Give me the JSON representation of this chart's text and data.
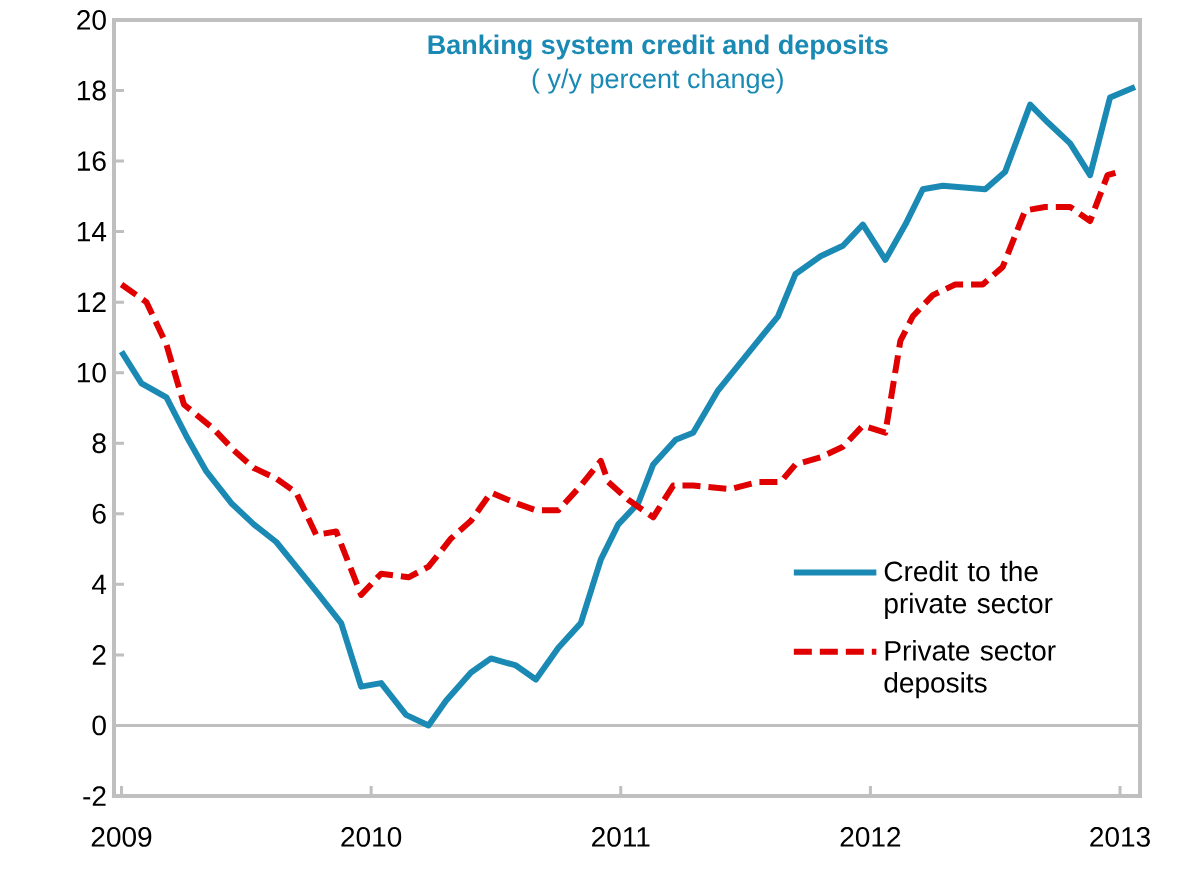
{
  "chart_data": {
    "type": "line",
    "title": "Banking system credit and deposits",
    "subtitle": "( y/y percent change)",
    "xlim": [
      2008.97,
      2013.08
    ],
    "xticks": [
      2009,
      2010,
      2011,
      2012,
      2013
    ],
    "ylim": [
      -2,
      20
    ],
    "yticks": [
      -2,
      0,
      2,
      4,
      6,
      8,
      10,
      12,
      14,
      16,
      18,
      20
    ],
    "legend": "bottom right",
    "grid": false,
    "marker": "none",
    "ref_lines": [
      {
        "axis": "y",
        "value": 0,
        "color": "#bfbfbf"
      }
    ],
    "series": [
      {
        "name": "Credit to the private sector",
        "color": "#1a8ab4",
        "line_style": "solid",
        "x": [
          2009.0,
          2009.08,
          2009.18,
          2009.26,
          2009.34,
          2009.44,
          2009.53,
          2009.62,
          2009.7,
          2009.78,
          2009.88,
          2009.96,
          2010.04,
          2010.14,
          2010.23,
          2010.3,
          2010.4,
          2010.48,
          2010.58,
          2010.66,
          2010.75,
          2010.84,
          2010.92,
          2010.99,
          2011.07,
          2011.13,
          2011.22,
          2011.29,
          2011.39,
          2011.55,
          2011.63,
          2011.7,
          2011.8,
          2011.89,
          2011.97,
          2012.06,
          2012.14,
          2012.21,
          2012.29,
          2012.46,
          2012.54,
          2012.64,
          2012.71,
          2012.8,
          2012.88,
          2012.96,
          2013.06
        ],
        "values": [
          10.6,
          9.7,
          9.3,
          8.2,
          7.2,
          6.3,
          5.7,
          5.2,
          4.5,
          3.8,
          2.9,
          1.1,
          1.2,
          0.3,
          0.0,
          0.7,
          1.5,
          1.9,
          1.7,
          1.3,
          2.2,
          2.9,
          4.7,
          5.7,
          6.3,
          7.4,
          8.1,
          8.3,
          9.5,
          10.9,
          11.6,
          12.8,
          13.3,
          13.6,
          14.2,
          13.2,
          14.2,
          15.2,
          15.3,
          15.2,
          15.7,
          17.6,
          17.1,
          16.5,
          15.6,
          17.8,
          18.1
        ]
      },
      {
        "name": "Private sector deposits",
        "color": "#e00000",
        "line_style": "dashed",
        "x": [
          2009.0,
          2009.1,
          2009.18,
          2009.25,
          2009.37,
          2009.45,
          2009.53,
          2009.62,
          2009.7,
          2009.78,
          2009.86,
          2009.96,
          2010.04,
          2010.15,
          2010.23,
          2010.32,
          2010.4,
          2010.48,
          2010.58,
          2010.66,
          2010.75,
          2010.84,
          2010.92,
          2010.95,
          2011.03,
          2011.13,
          2011.21,
          2011.29,
          2011.44,
          2011.55,
          2011.64,
          2011.7,
          2011.8,
          2011.89,
          2011.97,
          2012.06,
          2012.12,
          2012.17,
          2012.25,
          2012.34,
          2012.45,
          2012.53,
          2012.62,
          2012.7,
          2012.8,
          2012.88,
          2012.95,
          2013.0
        ],
        "values": [
          12.5,
          12.0,
          10.8,
          9.1,
          8.4,
          7.8,
          7.3,
          7.0,
          6.6,
          5.4,
          5.5,
          3.7,
          4.3,
          4.2,
          4.5,
          5.3,
          5.8,
          6.6,
          6.3,
          6.1,
          6.1,
          6.8,
          7.5,
          6.9,
          6.4,
          5.9,
          6.8,
          6.8,
          6.7,
          6.9,
          6.9,
          7.4,
          7.6,
          7.9,
          8.5,
          8.3,
          10.9,
          11.6,
          12.2,
          12.5,
          12.5,
          13.0,
          14.6,
          14.7,
          14.7,
          14.3,
          15.6,
          15.7
        ]
      }
    ]
  }
}
